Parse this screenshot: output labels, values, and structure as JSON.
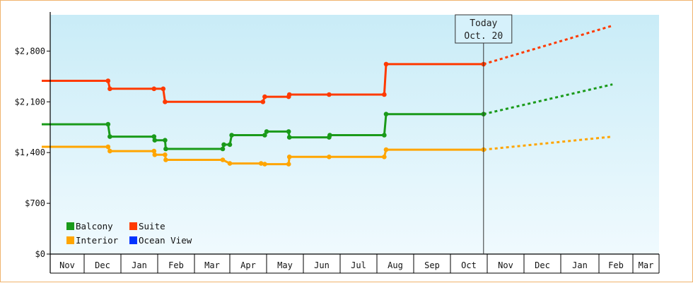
{
  "chart_data": {
    "type": "line",
    "title": "",
    "xlabel": "",
    "ylabel": "",
    "ylim": [
      0,
      3300
    ],
    "y_ticks": [
      0,
      700,
      1400,
      2100,
      2800
    ],
    "y_tick_labels": [
      "$0",
      "$700",
      "$1,400",
      "$2,100",
      "$2,800"
    ],
    "months": [
      "Nov",
      "Dec",
      "Jan",
      "Feb",
      "Mar",
      "Apr",
      "May",
      "Jun",
      "Jul",
      "Aug",
      "Sep",
      "Oct",
      "Nov",
      "Dec",
      "Jan",
      "Feb",
      "Mar"
    ],
    "today": {
      "line1": "Today",
      "line2": "Oct. 20",
      "x": 11.9
    },
    "grid": false,
    "legend_placement": "bottom-left",
    "series": [
      {
        "name": "Balcony",
        "color": "#1a9a1a",
        "points": [
          [
            -0.25,
            1790
          ],
          [
            1.65,
            1790
          ],
          [
            1.7,
            1620
          ],
          [
            2.9,
            1620
          ],
          [
            2.92,
            1570
          ],
          [
            3.2,
            1570
          ],
          [
            3.22,
            1450
          ],
          [
            4.8,
            1450
          ],
          [
            4.83,
            1510
          ],
          [
            5.0,
            1510
          ],
          [
            5.05,
            1640
          ],
          [
            5.95,
            1640
          ],
          [
            6.0,
            1690
          ],
          [
            6.6,
            1690
          ],
          [
            6.62,
            1610
          ],
          [
            7.7,
            1610
          ],
          [
            7.72,
            1640
          ],
          [
            9.2,
            1640
          ],
          [
            9.25,
            1930
          ],
          [
            11.9,
            1930
          ]
        ],
        "forecast": [
          [
            11.9,
            1930
          ],
          [
            15.4,
            2340
          ]
        ]
      },
      {
        "name": "Suite",
        "color": "#ff3a00",
        "points": [
          [
            -0.25,
            2390
          ],
          [
            1.65,
            2390
          ],
          [
            1.7,
            2280
          ],
          [
            2.9,
            2280
          ],
          [
            3.15,
            2280
          ],
          [
            3.2,
            2100
          ],
          [
            5.9,
            2100
          ],
          [
            5.95,
            2170
          ],
          [
            6.6,
            2170
          ],
          [
            6.62,
            2200
          ],
          [
            7.7,
            2200
          ],
          [
            9.2,
            2200
          ],
          [
            9.25,
            2620
          ],
          [
            11.9,
            2620
          ]
        ],
        "forecast": [
          [
            11.9,
            2620
          ],
          [
            15.4,
            3150
          ]
        ]
      },
      {
        "name": "Interior",
        "color": "#ffa500",
        "points": [
          [
            -0.25,
            1480
          ],
          [
            1.65,
            1480
          ],
          [
            1.7,
            1420
          ],
          [
            2.9,
            1420
          ],
          [
            2.92,
            1370
          ],
          [
            3.2,
            1370
          ],
          [
            3.22,
            1300
          ],
          [
            4.8,
            1300
          ],
          [
            5.0,
            1250
          ],
          [
            5.85,
            1250
          ],
          [
            5.95,
            1240
          ],
          [
            6.6,
            1240
          ],
          [
            6.62,
            1340
          ],
          [
            7.7,
            1340
          ],
          [
            9.2,
            1340
          ],
          [
            9.25,
            1440
          ],
          [
            11.9,
            1440
          ]
        ],
        "forecast": [
          [
            11.9,
            1440
          ],
          [
            15.4,
            1620
          ]
        ]
      },
      {
        "name": "Ocean View",
        "color": "#0033ff",
        "points": [],
        "forecast": []
      }
    ]
  }
}
